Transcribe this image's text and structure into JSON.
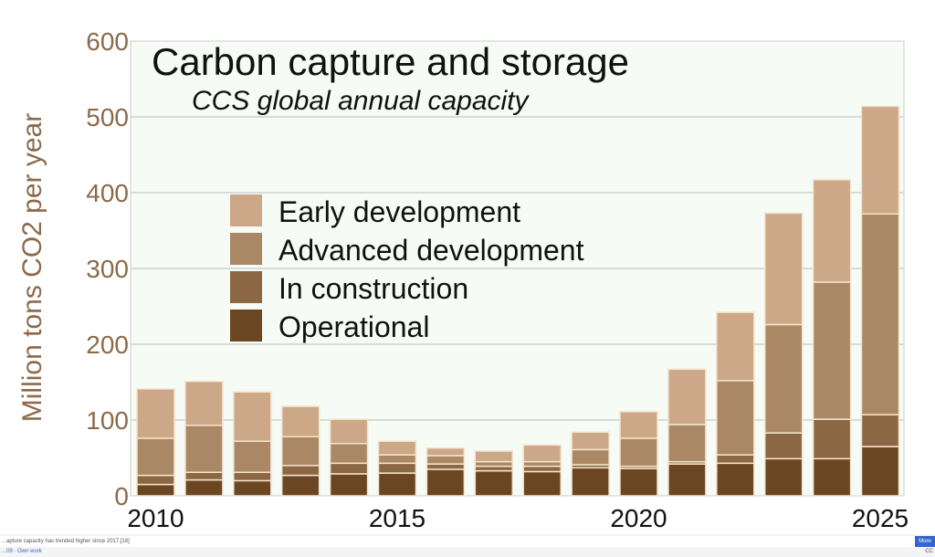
{
  "chart_data": {
    "type": "bar",
    "stacked": true,
    "title": "Carbon capture and storage",
    "subtitle": "CCS global annual capacity",
    "ylabel": "Million tons CO2 per year",
    "xlabel": "",
    "ylim": [
      0,
      600
    ],
    "yticks": [
      0,
      100,
      200,
      300,
      400,
      500,
      600
    ],
    "xticks": [
      "2010",
      "2015",
      "2020",
      "2025"
    ],
    "grid": true,
    "legend_position": "upper-left",
    "categories": [
      "2010",
      "2011",
      "2012",
      "2013",
      "2014",
      "2015",
      "2016",
      "2017",
      "2018",
      "2019",
      "2020",
      "2021",
      "2022",
      "2023",
      "2024",
      "2025"
    ],
    "series": [
      {
        "name": "Operational",
        "color": "#6b4623",
        "values": [
          15,
          21,
          20,
          27,
          29,
          30,
          35,
          33,
          32,
          37,
          36,
          42,
          43,
          49,
          49,
          65
        ]
      },
      {
        "name": "In construction",
        "color": "#8b6743",
        "values": [
          12,
          10,
          11,
          13,
          14,
          13,
          7,
          6,
          7,
          4,
          3,
          3,
          11,
          34,
          52,
          42
        ]
      },
      {
        "name": "Advanced development",
        "color": "#ab8865",
        "values": [
          49,
          62,
          41,
          38,
          26,
          11,
          11,
          6,
          6,
          20,
          37,
          49,
          98,
          143,
          181,
          265
        ]
      },
      {
        "name": "Early development",
        "color": "#cca788",
        "values": [
          65,
          58,
          65,
          40,
          32,
          18,
          10,
          14,
          22,
          23,
          35,
          73,
          90,
          147,
          135,
          142
        ]
      }
    ],
    "colors": {
      "plot_background": "#f6fbf5",
      "tick_labels": "#8b6a4a",
      "grid": "#d8dcd8"
    }
  },
  "footer": {
    "caption": "...apture capacity has trended higher since 2017.[18]",
    "source": "...09 · Own work",
    "more_button": "More",
    "license": "CC"
  }
}
